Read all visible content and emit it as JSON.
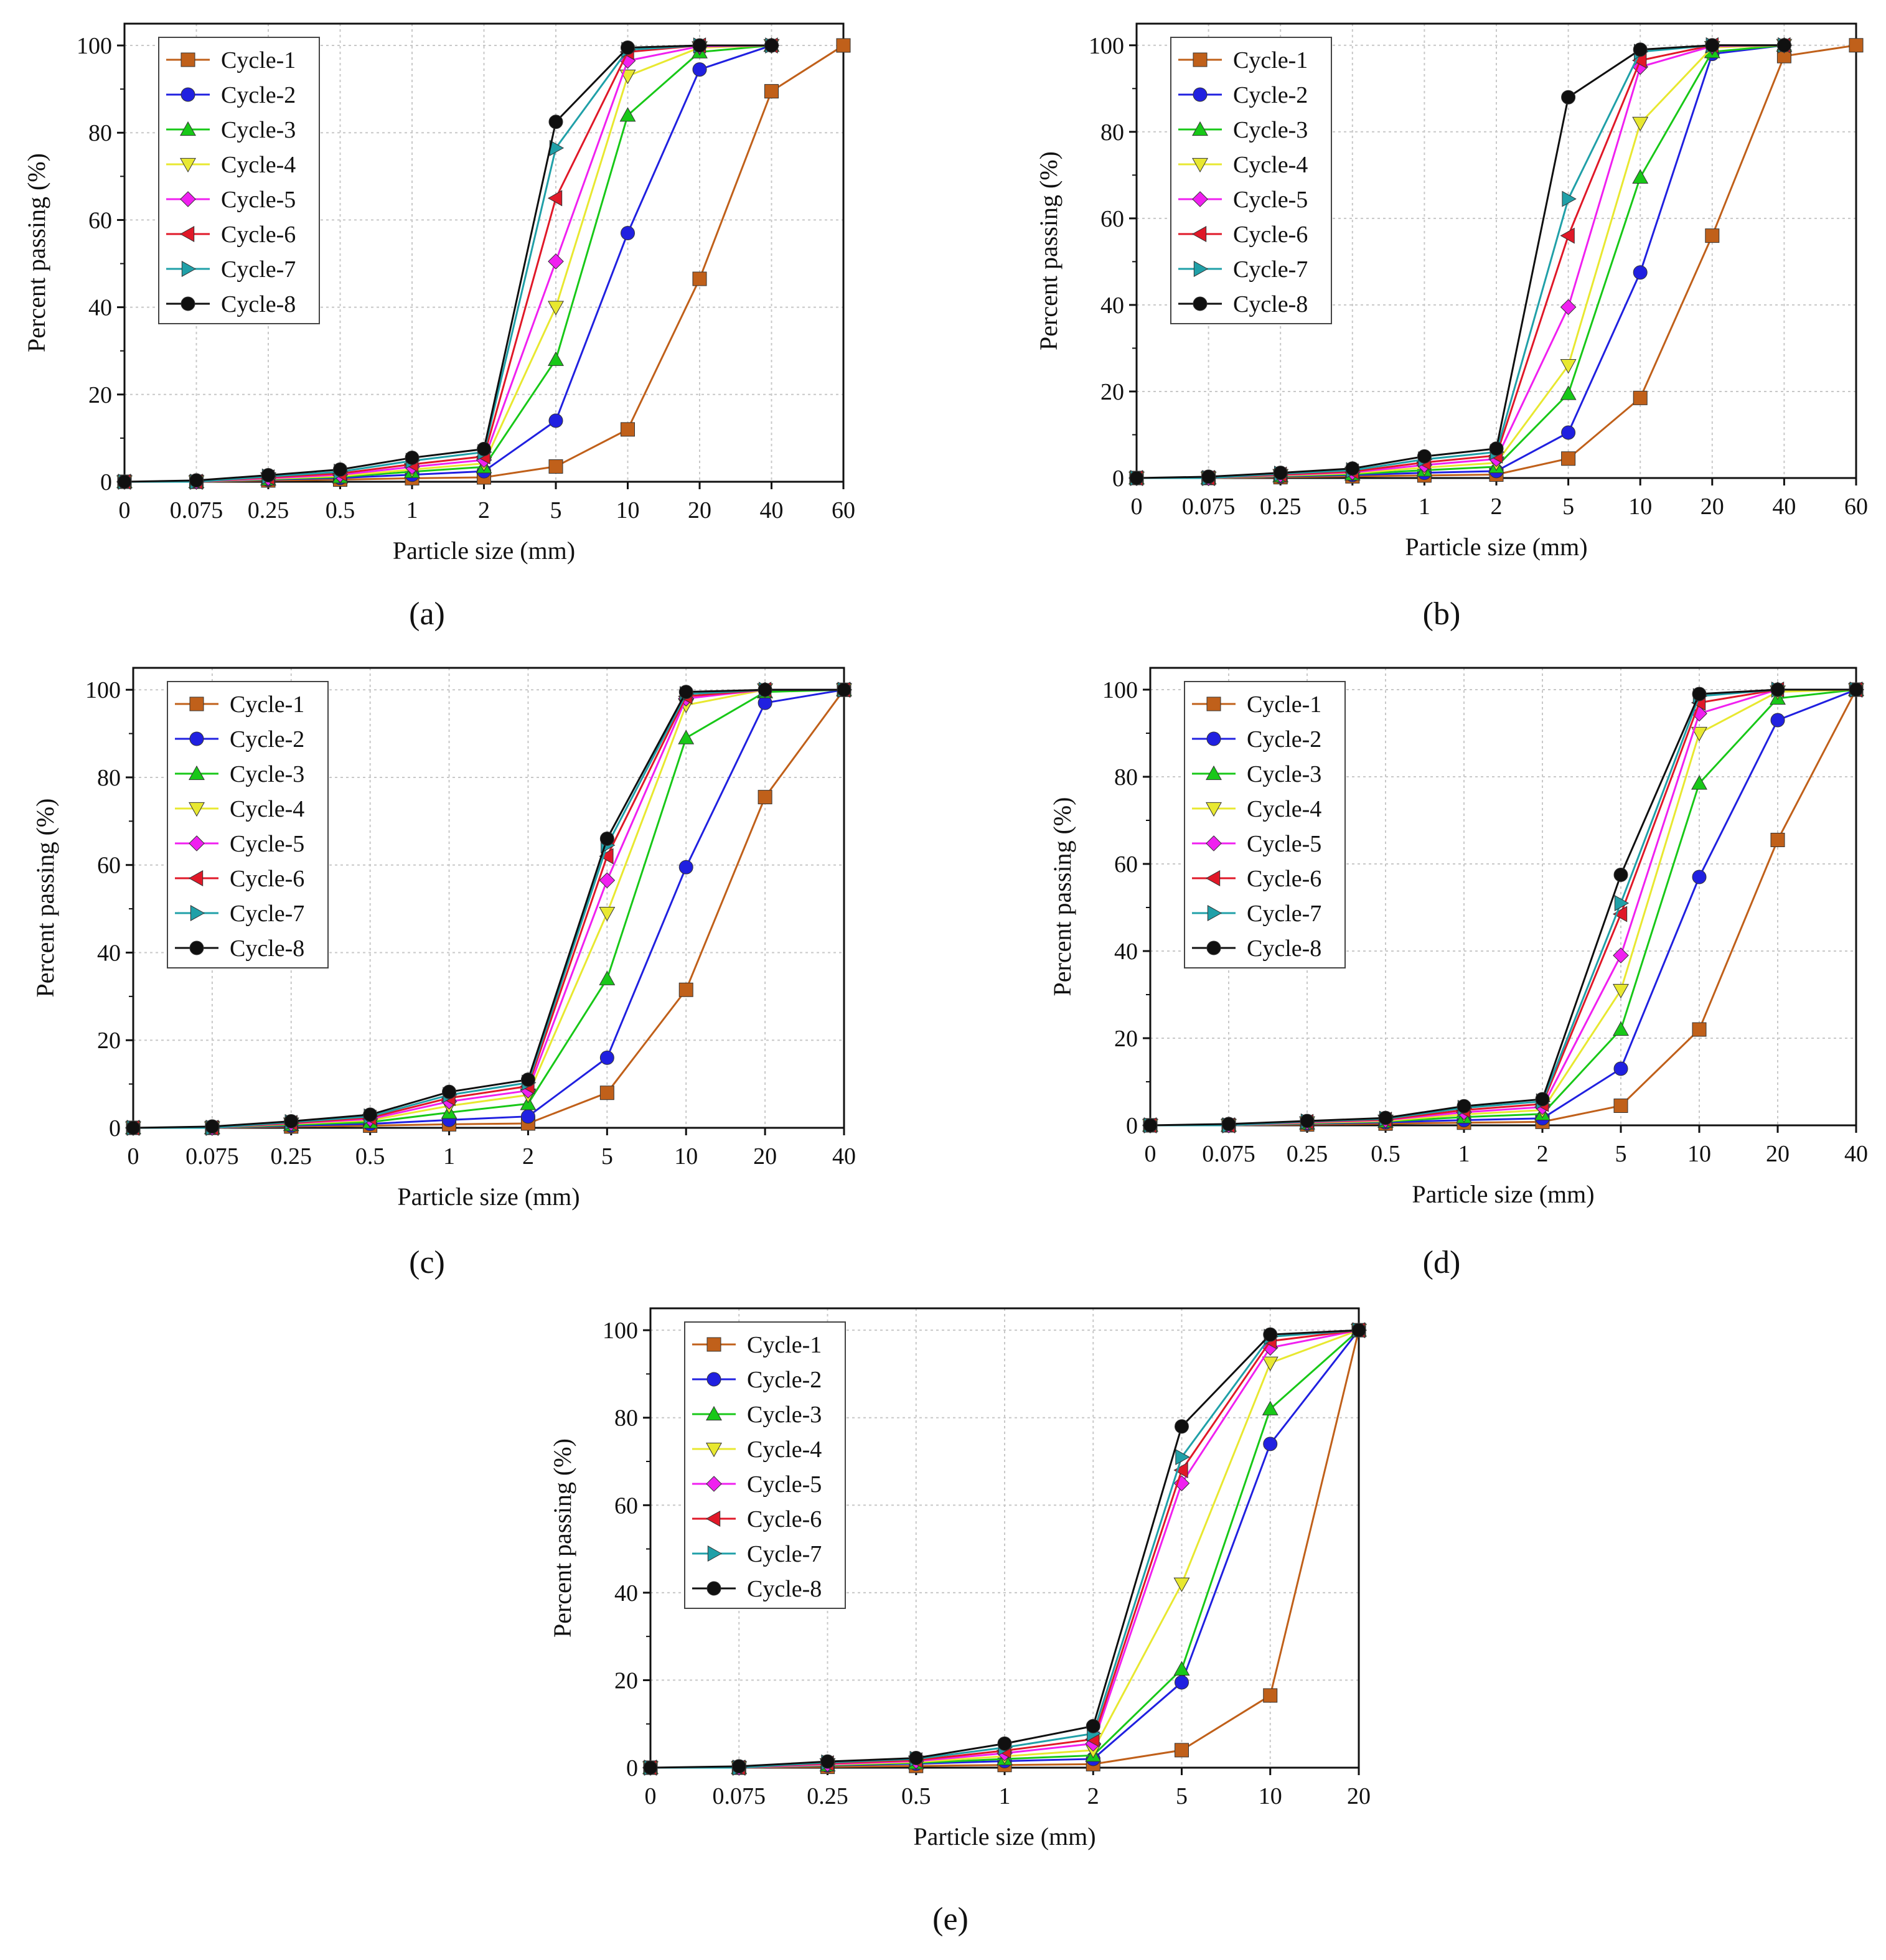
{
  "figure": {
    "series_names": [
      "Cycle-1",
      "Cycle-2",
      "Cycle-3",
      "Cycle-4",
      "Cycle-5",
      "Cycle-6",
      "Cycle-7",
      "Cycle-8"
    ],
    "series_colors": [
      "#c0601a",
      "#2020e0",
      "#18c818",
      "#e8e830",
      "#f020f0",
      "#e01828",
      "#20a0a8",
      "#101010"
    ],
    "series_markers": [
      "square",
      "circle",
      "triangle-up",
      "triangle-down",
      "diamond",
      "triangle-left",
      "triangle-right",
      "circle"
    ]
  },
  "chart_data": [
    {
      "type": "line",
      "panel_label": "(a)",
      "xlabel": "Particle size (mm)",
      "ylabel": "Percent passing (%)",
      "x": [
        "0",
        "0.075",
        "0.25",
        "0.5",
        "1",
        "2",
        "5",
        "10",
        "20",
        "40",
        "60"
      ],
      "ylim": [
        0,
        105
      ],
      "yticks": [
        0,
        20,
        40,
        60,
        80,
        100
      ],
      "grid": true,
      "legend_position": "top-left",
      "series": [
        {
          "name": "Cycle-1",
          "values": [
            0,
            0,
            0.3,
            0.5,
            0.8,
            1,
            3.5,
            12,
            46.5,
            89.5,
            100
          ]
        },
        {
          "name": "Cycle-2",
          "values": [
            0,
            0,
            0.5,
            0.9,
            1.6,
            2.4,
            14,
            57,
            94.5,
            100,
            null
          ]
        },
        {
          "name": "Cycle-3",
          "values": [
            0,
            0,
            0.6,
            1.1,
            2.3,
            3.4,
            28,
            84,
            98.5,
            100,
            null
          ]
        },
        {
          "name": "Cycle-4",
          "values": [
            0,
            0,
            0.7,
            1.3,
            2.8,
            4.2,
            40,
            93,
            99.5,
            100,
            null
          ]
        },
        {
          "name": "Cycle-5",
          "values": [
            0,
            0,
            0.8,
            1.6,
            3.4,
            5,
            50.5,
            96.5,
            99.8,
            100,
            null
          ]
        },
        {
          "name": "Cycle-6",
          "values": [
            0,
            0,
            1,
            1.9,
            4,
            5.8,
            65,
            98.5,
            100,
            100,
            null
          ]
        },
        {
          "name": "Cycle-7",
          "values": [
            0,
            0,
            1.2,
            2.3,
            4.8,
            6.8,
            76.5,
            99,
            100,
            100,
            null
          ]
        },
        {
          "name": "Cycle-8",
          "values": [
            0,
            0.3,
            1.5,
            2.8,
            5.5,
            7.5,
            82.5,
            99.5,
            100,
            100,
            null
          ]
        }
      ]
    },
    {
      "type": "line",
      "panel_label": "(b)",
      "xlabel": "Particle size (mm)",
      "ylabel": "Percent passing (%)",
      "x": [
        "0",
        "0.075",
        "0.25",
        "0.5",
        "1",
        "2",
        "5",
        "10",
        "20",
        "40",
        "60"
      ],
      "ylim": [
        0,
        105
      ],
      "yticks": [
        0,
        20,
        40,
        60,
        80,
        100
      ],
      "grid": true,
      "legend_position": "top-left",
      "series": [
        {
          "name": "Cycle-1",
          "values": [
            0,
            0,
            0.2,
            0.4,
            0.6,
            0.8,
            4.5,
            18.5,
            56,
            97.5,
            100
          ]
        },
        {
          "name": "Cycle-2",
          "values": [
            0,
            0,
            0.4,
            0.7,
            1.2,
            1.6,
            10.5,
            47.5,
            98,
            100,
            null
          ]
        },
        {
          "name": "Cycle-3",
          "values": [
            0,
            0,
            0.5,
            0.9,
            1.8,
            2.6,
            19.5,
            69.5,
            98.5,
            100,
            null
          ]
        },
        {
          "name": "Cycle-4",
          "values": [
            0,
            0,
            0.6,
            1.1,
            2.4,
            3.5,
            26,
            82,
            99.5,
            100,
            null
          ]
        },
        {
          "name": "Cycle-5",
          "values": [
            0,
            0,
            0.7,
            1.3,
            3,
            4.4,
            39.5,
            95,
            99.8,
            100,
            null
          ]
        },
        {
          "name": "Cycle-6",
          "values": [
            0,
            0,
            0.8,
            1.5,
            3.6,
            5.2,
            56,
            96.5,
            100,
            100,
            null
          ]
        },
        {
          "name": "Cycle-7",
          "values": [
            0,
            0,
            1,
            1.8,
            4.3,
            6,
            64.5,
            98.5,
            100,
            100,
            null
          ]
        },
        {
          "name": "Cycle-8",
          "values": [
            0,
            0.3,
            1.2,
            2.2,
            5,
            6.8,
            88,
            99,
            100,
            100,
            null
          ]
        }
      ]
    },
    {
      "type": "line",
      "panel_label": "(c)",
      "xlabel": "Particle size  (mm)",
      "ylabel": "Percent passing (%)",
      "x": [
        "0",
        "0.075",
        "0.25",
        "0.5",
        "1",
        "2",
        "5",
        "10",
        "20",
        "40"
      ],
      "ylim": [
        0,
        105
      ],
      "yticks": [
        0,
        20,
        40,
        60,
        80,
        100
      ],
      "grid": true,
      "legend_position": "top-left",
      "series": [
        {
          "name": "Cycle-1",
          "values": [
            0,
            0,
            0.3,
            0.5,
            0.8,
            1,
            8,
            31.5,
            75.5,
            100
          ]
        },
        {
          "name": "Cycle-2",
          "values": [
            0,
            0,
            0.5,
            0.9,
            1.8,
            2.6,
            16,
            59.5,
            97,
            100
          ]
        },
        {
          "name": "Cycle-3",
          "values": [
            0,
            0,
            0.7,
            1.3,
            3.5,
            5.5,
            34,
            89,
            99.5,
            100
          ]
        },
        {
          "name": "Cycle-4",
          "values": [
            0,
            0,
            0.9,
            1.7,
            5,
            7.5,
            49,
            96.5,
            100,
            100
          ]
        },
        {
          "name": "Cycle-5",
          "values": [
            0,
            0,
            1,
            2,
            6,
            8.5,
            56.5,
            98,
            100,
            100
          ]
        },
        {
          "name": "Cycle-6",
          "values": [
            0,
            0,
            1.1,
            2.3,
            6.8,
            9.5,
            62,
            98.5,
            100,
            100
          ]
        },
        {
          "name": "Cycle-7",
          "values": [
            0,
            0,
            1.3,
            2.6,
            7.5,
            10.3,
            64.5,
            99,
            100,
            100
          ]
        },
        {
          "name": "Cycle-8",
          "values": [
            0,
            0.3,
            1.5,
            3,
            8.2,
            11,
            66,
            99.5,
            100,
            100
          ]
        }
      ]
    },
    {
      "type": "line",
      "panel_label": "(d)",
      "xlabel": "Particle size (mm)",
      "ylabel": "Percent passing (%)",
      "x": [
        "0",
        "0.075",
        "0.25",
        "0.5",
        "1",
        "2",
        "5",
        "10",
        "20",
        "40"
      ],
      "ylim": [
        0,
        105
      ],
      "yticks": [
        0,
        20,
        40,
        60,
        80,
        100
      ],
      "grid": true,
      "legend_position": "top-left",
      "series": [
        {
          "name": "Cycle-1",
          "values": [
            0,
            0,
            0.2,
            0.4,
            0.6,
            0.8,
            4.5,
            22,
            65.5,
            100
          ]
        },
        {
          "name": "Cycle-2",
          "values": [
            0,
            0,
            0.4,
            0.7,
            1.2,
            1.6,
            13,
            57,
            93,
            100
          ]
        },
        {
          "name": "Cycle-3",
          "values": [
            0,
            0,
            0.5,
            0.9,
            1.9,
            2.6,
            22,
            78.5,
            98,
            100
          ]
        },
        {
          "name": "Cycle-4",
          "values": [
            0,
            0,
            0.6,
            1,
            2.5,
            3.5,
            31,
            90,
            99.5,
            100
          ]
        },
        {
          "name": "Cycle-5",
          "values": [
            0,
            0,
            0.7,
            1.2,
            3,
            4.2,
            39,
            94.5,
            100,
            100
          ]
        },
        {
          "name": "Cycle-6",
          "values": [
            0,
            0,
            0.8,
            1.3,
            3.5,
            4.9,
            48.5,
            97,
            100,
            100
          ]
        },
        {
          "name": "Cycle-7",
          "values": [
            0,
            0,
            0.9,
            1.5,
            4,
            5.5,
            51,
            98.5,
            100,
            100
          ]
        },
        {
          "name": "Cycle-8",
          "values": [
            0,
            0.3,
            1,
            1.7,
            4.4,
            6,
            57.5,
            99,
            100,
            100
          ]
        }
      ]
    },
    {
      "type": "line",
      "panel_label": "(e)",
      "xlabel": "Particle size (mm)",
      "ylabel": "Percent passing (%)",
      "x": [
        "0",
        "0.075",
        "0.25",
        "0.5",
        "1",
        "2",
        "5",
        "10",
        "20"
      ],
      "ylim": [
        0,
        105
      ],
      "yticks": [
        0,
        20,
        40,
        60,
        80,
        100
      ],
      "grid": true,
      "legend_position": "top-left",
      "series": [
        {
          "name": "Cycle-1",
          "values": [
            0,
            0,
            0.2,
            0.4,
            0.6,
            0.8,
            4,
            16.5,
            100
          ]
        },
        {
          "name": "Cycle-2",
          "values": [
            0,
            0,
            0.5,
            0.9,
            1.5,
            2,
            19.5,
            74,
            100
          ]
        },
        {
          "name": "Cycle-3",
          "values": [
            0,
            0,
            0.6,
            1.1,
            2,
            2.8,
            22.5,
            82,
            100
          ]
        },
        {
          "name": "Cycle-4",
          "values": [
            0,
            0,
            0.7,
            1.3,
            2.6,
            4,
            42,
            92.5,
            100
          ]
        },
        {
          "name": "Cycle-5",
          "values": [
            0,
            0,
            0.8,
            1.5,
            3.3,
            5.5,
            65,
            96,
            100
          ]
        },
        {
          "name": "Cycle-6",
          "values": [
            0,
            0,
            1,
            1.7,
            3.9,
            6.5,
            68,
            97.5,
            100
          ]
        },
        {
          "name": "Cycle-7",
          "values": [
            0,
            0,
            1.2,
            2,
            4.6,
            7.8,
            71,
            98.5,
            100
          ]
        },
        {
          "name": "Cycle-8",
          "values": [
            0,
            0.3,
            1.4,
            2.2,
            5.5,
            9.5,
            78,
            99,
            100
          ]
        }
      ]
    }
  ]
}
